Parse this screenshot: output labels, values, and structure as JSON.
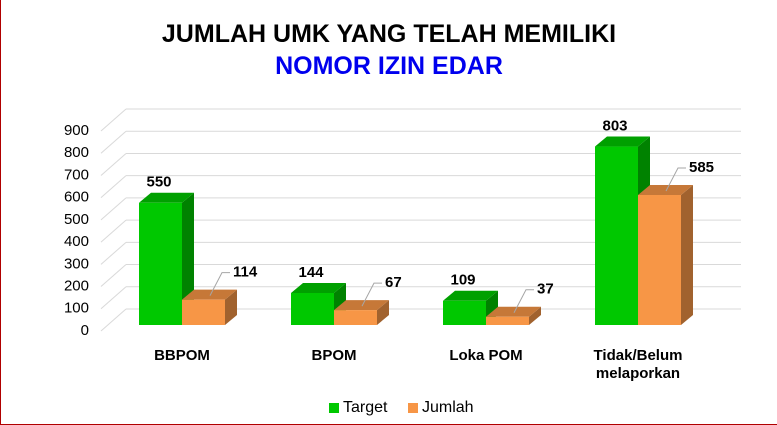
{
  "chart_data": {
    "type": "bar3d",
    "title": "JUMLAH UMK YANG TELAH MEMILIKI",
    "subtitle": "NOMOR IZIN EDAR",
    "categories": [
      "BBPOM",
      "BPOM",
      "Loka POM",
      "Tidak/Belum\nmelaporkan"
    ],
    "series": [
      {
        "name": "Target",
        "color": "#00c800",
        "values": [
          550,
          144,
          109,
          803
        ]
      },
      {
        "name": "Jumlah",
        "color": "#f79646",
        "values": [
          114,
          67,
          37,
          585
        ]
      }
    ],
    "ylim": [
      0,
      900
    ],
    "yticks": [
      0,
      100,
      200,
      300,
      400,
      500,
      600,
      700,
      800,
      900
    ],
    "grid": true,
    "legend": "bottom"
  }
}
